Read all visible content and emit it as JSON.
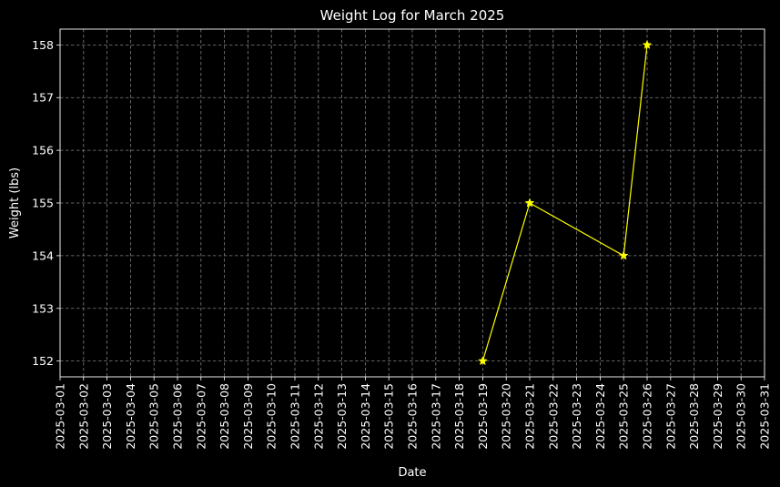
{
  "chart_data": {
    "type": "line",
    "title": "Weight Log for March 2025",
    "xlabel": "Date",
    "ylabel": "Weight (lbs)",
    "x_ticks": [
      "2025-03-01",
      "2025-03-02",
      "2025-03-03",
      "2025-03-04",
      "2025-03-05",
      "2025-03-06",
      "2025-03-07",
      "2025-03-08",
      "2025-03-09",
      "2025-03-10",
      "2025-03-11",
      "2025-03-12",
      "2025-03-13",
      "2025-03-14",
      "2025-03-15",
      "2025-03-16",
      "2025-03-17",
      "2025-03-18",
      "2025-03-19",
      "2025-03-20",
      "2025-03-21",
      "2025-03-22",
      "2025-03-23",
      "2025-03-24",
      "2025-03-25",
      "2025-03-26",
      "2025-03-27",
      "2025-03-28",
      "2025-03-29",
      "2025-03-30",
      "2025-03-31"
    ],
    "y_ticks": [
      152,
      153,
      154,
      155,
      156,
      157,
      158
    ],
    "xlim": [
      "2025-03-01",
      "2025-03-31"
    ],
    "ylim": [
      151.7,
      158.3
    ],
    "grid": true,
    "series": [
      {
        "x": [
          "2025-03-19",
          "2025-03-21",
          "2025-03-25",
          "2025-03-26"
        ],
        "values": [
          152,
          155,
          154,
          158
        ],
        "color": "#ffff00",
        "marker": "star"
      }
    ]
  },
  "colors": {
    "background": "#000000",
    "text": "#ffffff",
    "grid": "#808080",
    "line": "#ffff00"
  }
}
